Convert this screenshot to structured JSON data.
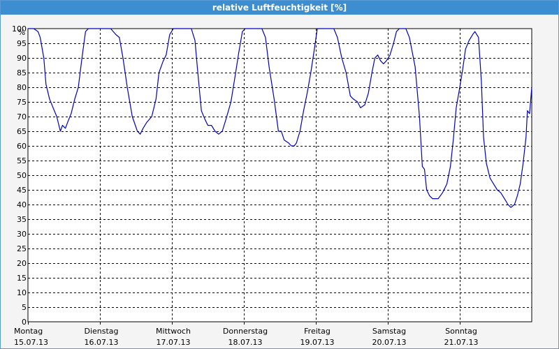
{
  "window": {
    "title": "relative Luftfeuchtigkeit [%]"
  },
  "colors": {
    "titlebar": "#3d8ed0",
    "line": "#0000c8",
    "background": "#f4f4f4",
    "plot_bg": "#ffffff"
  },
  "chart_data": {
    "type": "line",
    "title": "relative Luftfeuchtigkeit [%]",
    "ylabel": "%",
    "xlabel": "",
    "ylim": [
      0,
      100
    ],
    "yticks": [
      0,
      5,
      10,
      15,
      20,
      25,
      30,
      35,
      40,
      45,
      50,
      55,
      60,
      65,
      70,
      75,
      80,
      85,
      90,
      95,
      100
    ],
    "grid": true,
    "x_unit": "day",
    "xlim": [
      0,
      7
    ],
    "xtick_labels": [
      {
        "day": "Montag",
        "date": "15.07.13"
      },
      {
        "day": "Dienstag",
        "date": "16.07.13"
      },
      {
        "day": "Mittwoch",
        "date": "17.07.13"
      },
      {
        "day": "Donnerstag",
        "date": "18.07.13"
      },
      {
        "day": "Freitag",
        "date": "19.07.13"
      },
      {
        "day": "Samstag",
        "date": "20.07.13"
      },
      {
        "day": "Sonntag",
        "date": "21.07.13"
      }
    ],
    "series": [
      {
        "points": [
          [
            0.0,
            100
          ],
          [
            0.08,
            100
          ],
          [
            0.14,
            99
          ],
          [
            0.17,
            97
          ],
          [
            0.22,
            90
          ],
          [
            0.25,
            81
          ],
          [
            0.3,
            76
          ],
          [
            0.35,
            73
          ],
          [
            0.4,
            70
          ],
          [
            0.43,
            67
          ],
          [
            0.45,
            65
          ],
          [
            0.48,
            67
          ],
          [
            0.52,
            66
          ],
          [
            0.55,
            68
          ],
          [
            0.6,
            71
          ],
          [
            0.65,
            76
          ],
          [
            0.7,
            80
          ],
          [
            0.75,
            90
          ],
          [
            0.8,
            99
          ],
          [
            0.84,
            100
          ],
          [
            1.0,
            100
          ],
          [
            1.15,
            100
          ],
          [
            1.22,
            98
          ],
          [
            1.27,
            97
          ],
          [
            1.32,
            90
          ],
          [
            1.38,
            80
          ],
          [
            1.45,
            70
          ],
          [
            1.52,
            65
          ],
          [
            1.56,
            64
          ],
          [
            1.6,
            66
          ],
          [
            1.65,
            68
          ],
          [
            1.72,
            70
          ],
          [
            1.78,
            76
          ],
          [
            1.82,
            85
          ],
          [
            1.88,
            89
          ],
          [
            1.92,
            91
          ],
          [
            1.97,
            98
          ],
          [
            2.02,
            100
          ],
          [
            2.2,
            100
          ],
          [
            2.27,
            100
          ],
          [
            2.32,
            96
          ],
          [
            2.36,
            85
          ],
          [
            2.41,
            72
          ],
          [
            2.46,
            69
          ],
          [
            2.5,
            67
          ],
          [
            2.55,
            67
          ],
          [
            2.6,
            65
          ],
          [
            2.65,
            64
          ],
          [
            2.7,
            65
          ],
          [
            2.75,
            69
          ],
          [
            2.82,
            75
          ],
          [
            2.88,
            84
          ],
          [
            2.93,
            92
          ],
          [
            2.98,
            99
          ],
          [
            3.02,
            100
          ],
          [
            3.25,
            100
          ],
          [
            3.3,
            97
          ],
          [
            3.35,
            87
          ],
          [
            3.42,
            76
          ],
          [
            3.48,
            65
          ],
          [
            3.52,
            65
          ],
          [
            3.56,
            62
          ],
          [
            3.62,
            61
          ],
          [
            3.66,
            60
          ],
          [
            3.7,
            60
          ],
          [
            3.73,
            61
          ],
          [
            3.78,
            65
          ],
          [
            3.83,
            72
          ],
          [
            3.88,
            78
          ],
          [
            3.93,
            85
          ],
          [
            3.98,
            93
          ],
          [
            4.02,
            100
          ],
          [
            4.25,
            100
          ],
          [
            4.3,
            97
          ],
          [
            4.36,
            90
          ],
          [
            4.42,
            85
          ],
          [
            4.48,
            77
          ],
          [
            4.52,
            76
          ],
          [
            4.58,
            75
          ],
          [
            4.62,
            73
          ],
          [
            4.68,
            74
          ],
          [
            4.73,
            78
          ],
          [
            4.78,
            85
          ],
          [
            4.82,
            90
          ],
          [
            4.86,
            91
          ],
          [
            4.9,
            89
          ],
          [
            4.94,
            88
          ],
          [
            4.98,
            89
          ],
          [
            5.03,
            91
          ],
          [
            5.08,
            95
          ],
          [
            5.12,
            99
          ],
          [
            5.16,
            100
          ],
          [
            5.25,
            100
          ],
          [
            5.3,
            97
          ],
          [
            5.38,
            87
          ],
          [
            5.44,
            70
          ],
          [
            5.48,
            53
          ],
          [
            5.51,
            52
          ],
          [
            5.54,
            45
          ],
          [
            5.58,
            43
          ],
          [
            5.62,
            42
          ],
          [
            5.7,
            42
          ],
          [
            5.76,
            44
          ],
          [
            5.82,
            47
          ],
          [
            5.87,
            53
          ],
          [
            5.91,
            62
          ],
          [
            5.95,
            73
          ],
          [
            6.0,
            80
          ],
          [
            6.04,
            86
          ],
          [
            6.08,
            93
          ],
          [
            6.13,
            96
          ],
          [
            6.18,
            98
          ],
          [
            6.21,
            99
          ],
          [
            6.26,
            97
          ],
          [
            6.3,
            82
          ],
          [
            6.33,
            63
          ],
          [
            6.37,
            54
          ],
          [
            6.42,
            49
          ],
          [
            6.47,
            47
          ],
          [
            6.52,
            45
          ],
          [
            6.57,
            44
          ],
          [
            6.62,
            42
          ],
          [
            6.67,
            40
          ],
          [
            6.71,
            39
          ],
          [
            6.76,
            40
          ],
          [
            6.8,
            43
          ],
          [
            6.84,
            47
          ],
          [
            6.88,
            54
          ],
          [
            6.92,
            63
          ],
          [
            6.94,
            72
          ],
          [
            6.97,
            71
          ],
          [
            7.0,
            80
          ]
        ]
      }
    ]
  }
}
